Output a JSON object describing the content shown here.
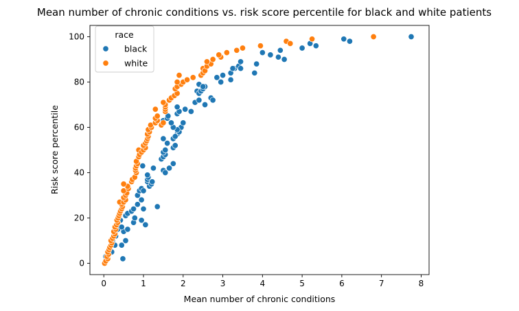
{
  "chart_data": {
    "type": "scatter",
    "title": "Mean number of chronic conditions vs. risk score percentile for black and white patients",
    "xlabel": "Mean number of chronic conditions",
    "ylabel": "Risk score percentile",
    "xlim": [
      -0.35,
      8.2
    ],
    "ylim": [
      -5,
      105
    ],
    "xticks": [
      0,
      1,
      2,
      3,
      4,
      5,
      6,
      7,
      8
    ],
    "yticks": [
      0,
      20,
      40,
      60,
      80,
      100
    ],
    "grid": false,
    "legend": {
      "title": "race",
      "position": "upper-left"
    },
    "series": [
      {
        "name": "black",
        "color": "#1f77b4",
        "points": [
          [
            0.05,
            3
          ],
          [
            0.12,
            4
          ],
          [
            0.2,
            5
          ],
          [
            0.28,
            8
          ],
          [
            0.22,
            10
          ],
          [
            0.3,
            12
          ],
          [
            0.35,
            15
          ],
          [
            0.48,
            2
          ],
          [
            0.45,
            8
          ],
          [
            0.55,
            10
          ],
          [
            0.5,
            14
          ],
          [
            0.6,
            15
          ],
          [
            0.45,
            16
          ],
          [
            0.42,
            19
          ],
          [
            0.55,
            21
          ],
          [
            0.6,
            22
          ],
          [
            0.7,
            23
          ],
          [
            0.75,
            18
          ],
          [
            0.78,
            20
          ],
          [
            0.85,
            26
          ],
          [
            0.75,
            24
          ],
          [
            0.95,
            28
          ],
          [
            0.85,
            30
          ],
          [
            0.9,
            32
          ],
          [
            0.95,
            33
          ],
          [
            1.0,
            32
          ],
          [
            0.95,
            19
          ],
          [
            1.05,
            17
          ],
          [
            1.0,
            24
          ],
          [
            1.15,
            34
          ],
          [
            1.1,
            36
          ],
          [
            1.2,
            35
          ],
          [
            1.1,
            37
          ],
          [
            1.12,
            38
          ],
          [
            1.1,
            39
          ],
          [
            1.25,
            42
          ],
          [
            1.35,
            25
          ],
          [
            0.98,
            43
          ],
          [
            1.22,
            36
          ],
          [
            1.45,
            46
          ],
          [
            1.5,
            47
          ],
          [
            1.55,
            48
          ],
          [
            1.5,
            41
          ],
          [
            1.55,
            40
          ],
          [
            1.65,
            42
          ],
          [
            1.75,
            44
          ],
          [
            1.5,
            49
          ],
          [
            1.55,
            50
          ],
          [
            1.6,
            53
          ],
          [
            1.75,
            51
          ],
          [
            1.8,
            52
          ],
          [
            1.75,
            55
          ],
          [
            1.85,
            57
          ],
          [
            1.8,
            56
          ],
          [
            1.9,
            58
          ],
          [
            1.95,
            60
          ],
          [
            1.85,
            59
          ],
          [
            1.75,
            60
          ],
          [
            1.7,
            62
          ],
          [
            2.0,
            62
          ],
          [
            1.5,
            55
          ],
          [
            1.5,
            63
          ],
          [
            1.6,
            64
          ],
          [
            1.62,
            65
          ],
          [
            1.85,
            66
          ],
          [
            1.9,
            67
          ],
          [
            1.85,
            69
          ],
          [
            2.05,
            68
          ],
          [
            2.2,
            67
          ],
          [
            2.3,
            71
          ],
          [
            2.4,
            72
          ],
          [
            2.55,
            70
          ],
          [
            2.35,
            76
          ],
          [
            2.4,
            75
          ],
          [
            2.45,
            76
          ],
          [
            2.5,
            77
          ],
          [
            2.55,
            78
          ],
          [
            2.4,
            79
          ],
          [
            2.5,
            78
          ],
          [
            2.7,
            73
          ],
          [
            2.75,
            72
          ],
          [
            2.85,
            82
          ],
          [
            3.0,
            83
          ],
          [
            2.95,
            80
          ],
          [
            3.2,
            81
          ],
          [
            3.2,
            84
          ],
          [
            3.3,
            86
          ],
          [
            3.25,
            86
          ],
          [
            3.4,
            87
          ],
          [
            3.45,
            86
          ],
          [
            3.45,
            89
          ],
          [
            3.8,
            84
          ],
          [
            3.85,
            88
          ],
          [
            4.0,
            93
          ],
          [
            4.2,
            92
          ],
          [
            4.4,
            91
          ],
          [
            4.45,
            94
          ],
          [
            4.55,
            90
          ],
          [
            5.0,
            95
          ],
          [
            5.2,
            97
          ],
          [
            5.35,
            96
          ],
          [
            6.05,
            99
          ],
          [
            6.2,
            98
          ],
          [
            7.75,
            100
          ]
        ]
      },
      {
        "name": "white",
        "color": "#ff7f0e",
        "points": [
          [
            0.02,
            0
          ],
          [
            0.05,
            1
          ],
          [
            0.1,
            2
          ],
          [
            0.08,
            3
          ],
          [
            0.12,
            4
          ],
          [
            0.1,
            5
          ],
          [
            0.13,
            6
          ],
          [
            0.15,
            7
          ],
          [
            0.18,
            8
          ],
          [
            0.2,
            9
          ],
          [
            0.18,
            10
          ],
          [
            0.22,
            11
          ],
          [
            0.25,
            12
          ],
          [
            0.28,
            13
          ],
          [
            0.25,
            14
          ],
          [
            0.3,
            15
          ],
          [
            0.28,
            16
          ],
          [
            0.32,
            17
          ],
          [
            0.35,
            18
          ],
          [
            0.33,
            19
          ],
          [
            0.36,
            20
          ],
          [
            0.38,
            21
          ],
          [
            0.4,
            22
          ],
          [
            0.42,
            23
          ],
          [
            0.45,
            24
          ],
          [
            0.47,
            25
          ],
          [
            0.45,
            26
          ],
          [
            0.4,
            27
          ],
          [
            0.5,
            27
          ],
          [
            0.55,
            28
          ],
          [
            0.5,
            29
          ],
          [
            0.55,
            30
          ],
          [
            0.58,
            31
          ],
          [
            0.5,
            32
          ],
          [
            0.62,
            33
          ],
          [
            0.6,
            34
          ],
          [
            0.5,
            35
          ],
          [
            0.7,
            36
          ],
          [
            0.72,
            37
          ],
          [
            0.78,
            38
          ],
          [
            0.82,
            40
          ],
          [
            0.8,
            41
          ],
          [
            0.8,
            42
          ],
          [
            0.82,
            43
          ],
          [
            0.85,
            44
          ],
          [
            0.82,
            45
          ],
          [
            0.88,
            47
          ],
          [
            0.9,
            48
          ],
          [
            0.88,
            50
          ],
          [
            0.95,
            49
          ],
          [
            1.0,
            50
          ],
          [
            1.05,
            51
          ],
          [
            1.0,
            52
          ],
          [
            1.05,
            53
          ],
          [
            1.08,
            54
          ],
          [
            1.1,
            55
          ],
          [
            1.12,
            56
          ],
          [
            1.1,
            57
          ],
          [
            1.15,
            58
          ],
          [
            1.12,
            59
          ],
          [
            1.2,
            60
          ],
          [
            1.18,
            61
          ],
          [
            1.3,
            62
          ],
          [
            1.35,
            63
          ],
          [
            1.3,
            64
          ],
          [
            1.35,
            65
          ],
          [
            1.3,
            68
          ],
          [
            1.45,
            61
          ],
          [
            1.5,
            62
          ],
          [
            1.55,
            67
          ],
          [
            1.55,
            68
          ],
          [
            1.55,
            69
          ],
          [
            1.55,
            70
          ],
          [
            1.5,
            71
          ],
          [
            1.65,
            72
          ],
          [
            1.7,
            73
          ],
          [
            1.78,
            74
          ],
          [
            1.85,
            75
          ],
          [
            1.8,
            77
          ],
          [
            1.85,
            78
          ],
          [
            1.95,
            79
          ],
          [
            1.85,
            80
          ],
          [
            2.0,
            80
          ],
          [
            2.1,
            81
          ],
          [
            2.25,
            82
          ],
          [
            1.9,
            83
          ],
          [
            2.45,
            83
          ],
          [
            2.5,
            84
          ],
          [
            2.5,
            86
          ],
          [
            2.55,
            85
          ],
          [
            2.6,
            87
          ],
          [
            2.7,
            88
          ],
          [
            2.6,
            89
          ],
          [
            2.75,
            90
          ],
          [
            2.95,
            91
          ],
          [
            2.9,
            92
          ],
          [
            3.1,
            93
          ],
          [
            3.35,
            94
          ],
          [
            3.5,
            95
          ],
          [
            3.95,
            96
          ],
          [
            4.6,
            98
          ],
          [
            4.7,
            97
          ],
          [
            5.25,
            99
          ],
          [
            6.8,
            100
          ]
        ]
      }
    ]
  }
}
